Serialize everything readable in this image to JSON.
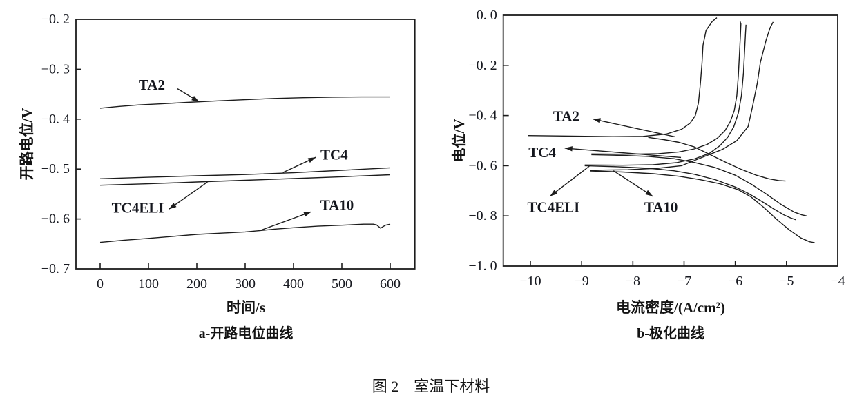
{
  "figure_caption": "图 2　室温下材料",
  "ink_color": "#1c1c1c",
  "chart_data": [
    {
      "type": "line",
      "subtitle": "a-开路电位曲线",
      "xlabel": "时间/s",
      "ylabel": "开路电位/V",
      "xlim": [
        -50,
        651
      ],
      "ylim": [
        -0.7,
        -0.2
      ],
      "grid": false,
      "xticks": {
        "values": [
          0,
          100,
          200,
          300,
          400,
          500,
          600
        ],
        "labels": [
          "0",
          "100",
          "200",
          "300",
          "400",
          "500",
          "600"
        ]
      },
      "yticks": {
        "values": [
          -0.2,
          -0.3,
          -0.4,
          -0.5,
          -0.6,
          -0.7
        ],
        "labels": [
          "−0. 2",
          "−0. 3",
          "−0. 4",
          "−0. 5",
          "−0. 6",
          "−0. 7"
        ]
      },
      "series": [
        {
          "name": "TA2",
          "points": [
            [
              0,
              -0.378
            ],
            [
              40,
              -0.3745
            ],
            [
              80,
              -0.3715
            ],
            [
              130,
              -0.369
            ],
            [
              180,
              -0.3665
            ],
            [
              240,
              -0.3635
            ],
            [
              300,
              -0.361
            ],
            [
              360,
              -0.3585
            ],
            [
              420,
              -0.357
            ],
            [
              480,
              -0.356
            ],
            [
              540,
              -0.3555
            ],
            [
              600,
              -0.3555
            ]
          ]
        },
        {
          "name": "TC4",
          "points": [
            [
              0,
              -0.5195
            ],
            [
              100,
              -0.5165
            ],
            [
              200,
              -0.5135
            ],
            [
              300,
              -0.511
            ],
            [
              400,
              -0.5075
            ],
            [
              500,
              -0.5025
            ],
            [
              600,
              -0.4975
            ]
          ]
        },
        {
          "name": "TC4ELI",
          "points": [
            [
              0,
              -0.5325
            ],
            [
              100,
              -0.5295
            ],
            [
              200,
              -0.526
            ],
            [
              300,
              -0.5225
            ],
            [
              400,
              -0.519
            ],
            [
              500,
              -0.5155
            ],
            [
              600,
              -0.5115
            ]
          ]
        },
        {
          "name": "TA10",
          "points": [
            [
              0,
              -0.647
            ],
            [
              50,
              -0.6425
            ],
            [
              100,
              -0.639
            ],
            [
              150,
              -0.635
            ],
            [
              200,
              -0.631
            ],
            [
              250,
              -0.6285
            ],
            [
              300,
              -0.626
            ],
            [
              330,
              -0.6235
            ],
            [
              360,
              -0.6205
            ],
            [
              400,
              -0.6175
            ],
            [
              450,
              -0.6145
            ],
            [
              500,
              -0.6125
            ],
            [
              545,
              -0.6105
            ],
            [
              565,
              -0.6105
            ],
            [
              572,
              -0.612
            ],
            [
              580,
              -0.6185
            ],
            [
              590,
              -0.6125
            ],
            [
              600,
              -0.6105
            ]
          ]
        }
      ],
      "annotations": [
        {
          "label": "TA2",
          "label_pos": [
            107,
            -0.3315
          ],
          "tail": [
            160,
            -0.339
          ],
          "head": [
            205,
            -0.3655
          ]
        },
        {
          "label": "TC4",
          "label_pos": [
            484,
            -0.4715
          ],
          "tail": [
            378,
            -0.507
          ],
          "head": [
            446,
            -0.4765
          ]
        },
        {
          "label": "TC4ELI",
          "label_pos": [
            78,
            -0.578
          ],
          "tail": [
            222,
            -0.526
          ],
          "head": [
            142,
            -0.5805
          ]
        },
        {
          "label": "TA10",
          "label_pos": [
            490,
            -0.5725
          ],
          "tail": [
            330,
            -0.6235
          ],
          "head": [
            437,
            -0.5855
          ]
        }
      ]
    },
    {
      "type": "line",
      "subtitle": "b-极化曲线",
      "xlabel": "电流密度/(A/cm²)",
      "ylabel": "电位/V",
      "xlim": [
        -10.53,
        -4
      ],
      "ylim": [
        -1.0,
        0.0
      ],
      "grid": false,
      "xticks": {
        "values": [
          -10,
          -9,
          -8,
          -7,
          -6,
          -5,
          -4
        ],
        "labels": [
          "−10",
          "−9",
          "−8",
          "−7",
          "−6",
          "−5",
          "−4"
        ]
      },
      "yticks": {
        "values": [
          0.0,
          -0.2,
          -0.4,
          -0.6,
          -0.8,
          -1.0
        ],
        "labels": [
          "0. 0",
          "−0. 2",
          "−0. 4",
          "−0. 6",
          "−0. 8",
          "−1. 0"
        ]
      },
      "series": [
        {
          "name": "TA2-anodic",
          "points": [
            [
              -10.05,
              -0.48
            ],
            [
              -9.2,
              -0.482
            ],
            [
              -8.4,
              -0.484
            ],
            [
              -7.8,
              -0.483
            ],
            [
              -7.35,
              -0.474
            ],
            [
              -7.05,
              -0.455
            ],
            [
              -6.88,
              -0.43
            ],
            [
              -6.78,
              -0.4
            ],
            [
              -6.72,
              -0.35
            ],
            [
              -6.68,
              -0.27
            ],
            [
              -6.65,
              -0.19
            ],
            [
              -6.63,
              -0.12
            ],
            [
              -6.57,
              -0.06
            ],
            [
              -6.45,
              -0.025
            ],
            [
              -6.36,
              -0.01
            ]
          ]
        },
        {
          "name": "TA2-cathodic",
          "points": [
            [
              -7.7,
              -0.487
            ],
            [
              -7.4,
              -0.496
            ],
            [
              -7.1,
              -0.507
            ],
            [
              -6.8,
              -0.525
            ],
            [
              -6.5,
              -0.555
            ],
            [
              -6.2,
              -0.585
            ],
            [
              -5.9,
              -0.613
            ],
            [
              -5.6,
              -0.637
            ],
            [
              -5.35,
              -0.652
            ],
            [
              -5.15,
              -0.659
            ],
            [
              -5.02,
              -0.661
            ]
          ]
        },
        {
          "name": "TC4-anodic",
          "points": [
            [
              -8.81,
              -0.553
            ],
            [
              -8.1,
              -0.554
            ],
            [
              -7.5,
              -0.552
            ],
            [
              -7.1,
              -0.545
            ],
            [
              -6.8,
              -0.533
            ],
            [
              -6.55,
              -0.515
            ],
            [
              -6.35,
              -0.49
            ],
            [
              -6.2,
              -0.46
            ],
            [
              -6.1,
              -0.425
            ],
            [
              -6.02,
              -0.38
            ],
            [
              -5.97,
              -0.32
            ],
            [
              -5.94,
              -0.24
            ],
            [
              -5.92,
              -0.16
            ],
            [
              -5.9,
              -0.08
            ],
            [
              -5.89,
              -0.035
            ],
            [
              -5.91,
              -0.022
            ]
          ]
        },
        {
          "name": "TC4-cathodic",
          "points": [
            [
              -8.81,
              -0.556
            ],
            [
              -8.2,
              -0.559
            ],
            [
              -7.7,
              -0.563
            ],
            [
              -7.2,
              -0.572
            ],
            [
              -6.8,
              -0.587
            ],
            [
              -6.4,
              -0.607
            ],
            [
              -6.0,
              -0.638
            ],
            [
              -5.7,
              -0.672
            ],
            [
              -5.4,
              -0.712
            ],
            [
              -5.1,
              -0.755
            ],
            [
              -4.85,
              -0.785
            ],
            [
              -4.7,
              -0.796
            ],
            [
              -4.61,
              -0.8
            ]
          ]
        },
        {
          "name": "TC4ELI-anodic",
          "points": [
            [
              -8.94,
              -0.597
            ],
            [
              -8.2,
              -0.598
            ],
            [
              -7.6,
              -0.596
            ],
            [
              -7.15,
              -0.588
            ],
            [
              -6.8,
              -0.573
            ],
            [
              -6.5,
              -0.55
            ],
            [
              -6.3,
              -0.52
            ],
            [
              -6.15,
              -0.487
            ],
            [
              -6.03,
              -0.445
            ],
            [
              -5.94,
              -0.39
            ],
            [
              -5.88,
              -0.32
            ],
            [
              -5.84,
              -0.23
            ],
            [
              -5.82,
              -0.15
            ],
            [
              -5.8,
              -0.07
            ],
            [
              -5.79,
              -0.038
            ]
          ]
        },
        {
          "name": "TC4ELI-cathodic",
          "points": [
            [
              -8.94,
              -0.6
            ],
            [
              -8.3,
              -0.604
            ],
            [
              -7.7,
              -0.61
            ],
            [
              -7.2,
              -0.62
            ],
            [
              -6.8,
              -0.634
            ],
            [
              -6.4,
              -0.655
            ],
            [
              -6.0,
              -0.685
            ],
            [
              -5.75,
              -0.71
            ],
            [
              -5.5,
              -0.74
            ],
            [
              -5.25,
              -0.772
            ],
            [
              -5.05,
              -0.796
            ],
            [
              -4.92,
              -0.808
            ],
            [
              -4.82,
              -0.815
            ]
          ]
        },
        {
          "name": "TA10-anodic",
          "points": [
            [
              -8.83,
              -0.618
            ],
            [
              -8.1,
              -0.616
            ],
            [
              -7.5,
              -0.61
            ],
            [
              -7.05,
              -0.6
            ],
            [
              -6.65,
              -0.567
            ],
            [
              -6.25,
              -0.535
            ],
            [
              -5.97,
              -0.5
            ],
            [
              -5.75,
              -0.444
            ],
            [
              -5.66,
              -0.361
            ],
            [
              -5.57,
              -0.27
            ],
            [
              -5.51,
              -0.188
            ],
            [
              -5.4,
              -0.1
            ],
            [
              -5.32,
              -0.05
            ],
            [
              -5.26,
              -0.027
            ]
          ]
        },
        {
          "name": "TA10-cathodic",
          "points": [
            [
              -8.83,
              -0.621
            ],
            [
              -8.2,
              -0.625
            ],
            [
              -7.6,
              -0.632
            ],
            [
              -7.1,
              -0.642
            ],
            [
              -6.7,
              -0.655
            ],
            [
              -6.3,
              -0.672
            ],
            [
              -5.95,
              -0.695
            ],
            [
              -5.7,
              -0.723
            ],
            [
              -5.45,
              -0.765
            ],
            [
              -5.2,
              -0.812
            ],
            [
              -4.95,
              -0.855
            ],
            [
              -4.72,
              -0.888
            ],
            [
              -4.55,
              -0.903
            ],
            [
              -4.45,
              -0.907
            ]
          ]
        }
      ],
      "annotations": [
        {
          "label": "TA2",
          "label_pos": [
            -9.3,
            -0.402
          ],
          "tail": [
            -7.17,
            -0.485
          ],
          "head": [
            -8.78,
            -0.414
          ]
        },
        {
          "label": "TC4",
          "label_pos": [
            -9.77,
            -0.547
          ],
          "tail": [
            -7.06,
            -0.567
          ],
          "head": [
            -9.33,
            -0.53
          ]
        },
        {
          "label": "TC4ELI",
          "label_pos": [
            -9.55,
            -0.765
          ],
          "tail": [
            -8.85,
            -0.602
          ],
          "head": [
            -9.62,
            -0.722
          ]
        },
        {
          "label": "TA10",
          "label_pos": [
            -7.45,
            -0.765
          ],
          "tail": [
            -8.38,
            -0.62
          ],
          "head": [
            -7.61,
            -0.722
          ]
        }
      ]
    }
  ]
}
